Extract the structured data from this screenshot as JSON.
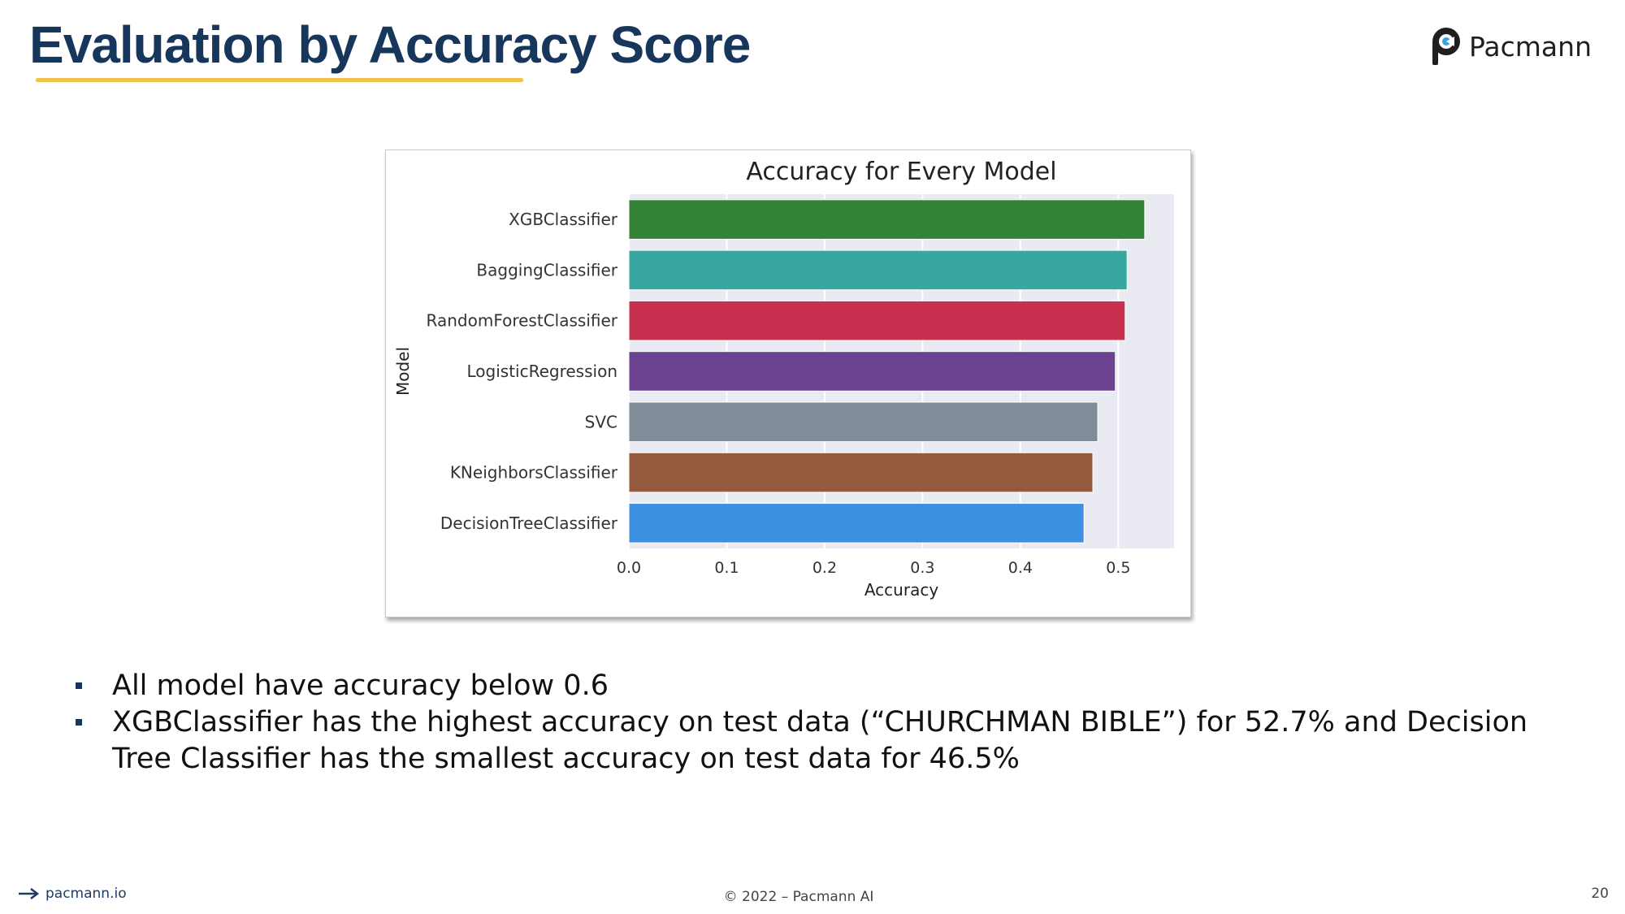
{
  "slide": {
    "title": "Evaluation by Accuracy Score",
    "logo_text": "Pacmann",
    "bullets": [
      "All model have accuracy below 0.6",
      "XGBClassifier has the highest accuracy on test data (“CHURCHMAN BIBLE”) for 52.7% and Decision Tree Classifier has the smallest accuracy on test data for 46.5%"
    ],
    "footer": {
      "site": "pacmann.io",
      "copyright": "© 2022 – Pacmann AI",
      "page_number": "20"
    },
    "colors": {
      "title": "#16365c",
      "underline": "#f0c44c"
    }
  },
  "chart_data": {
    "type": "bar",
    "orientation": "horizontal",
    "title": "Accuracy for Every Model",
    "xlabel": "Accuracy",
    "ylabel": "Model",
    "xlim": [
      0,
      0.557
    ],
    "xticks": [
      "0.0",
      "0.1",
      "0.2",
      "0.3",
      "0.4",
      "0.5"
    ],
    "grid": true,
    "categories": [
      "XGBClassifier",
      "BaggingClassifier",
      "RandomForestClassifier",
      "LogisticRegression",
      "SVC",
      "KNeighborsClassifier",
      "DecisionTreeClassifier"
    ],
    "values": [
      0.527,
      0.509,
      0.507,
      0.497,
      0.479,
      0.474,
      0.465
    ],
    "colors": [
      "#338235",
      "#37a7a0",
      "#c8304f",
      "#6b428f",
      "#808c98",
      "#955a3e",
      "#3c90e0"
    ]
  }
}
